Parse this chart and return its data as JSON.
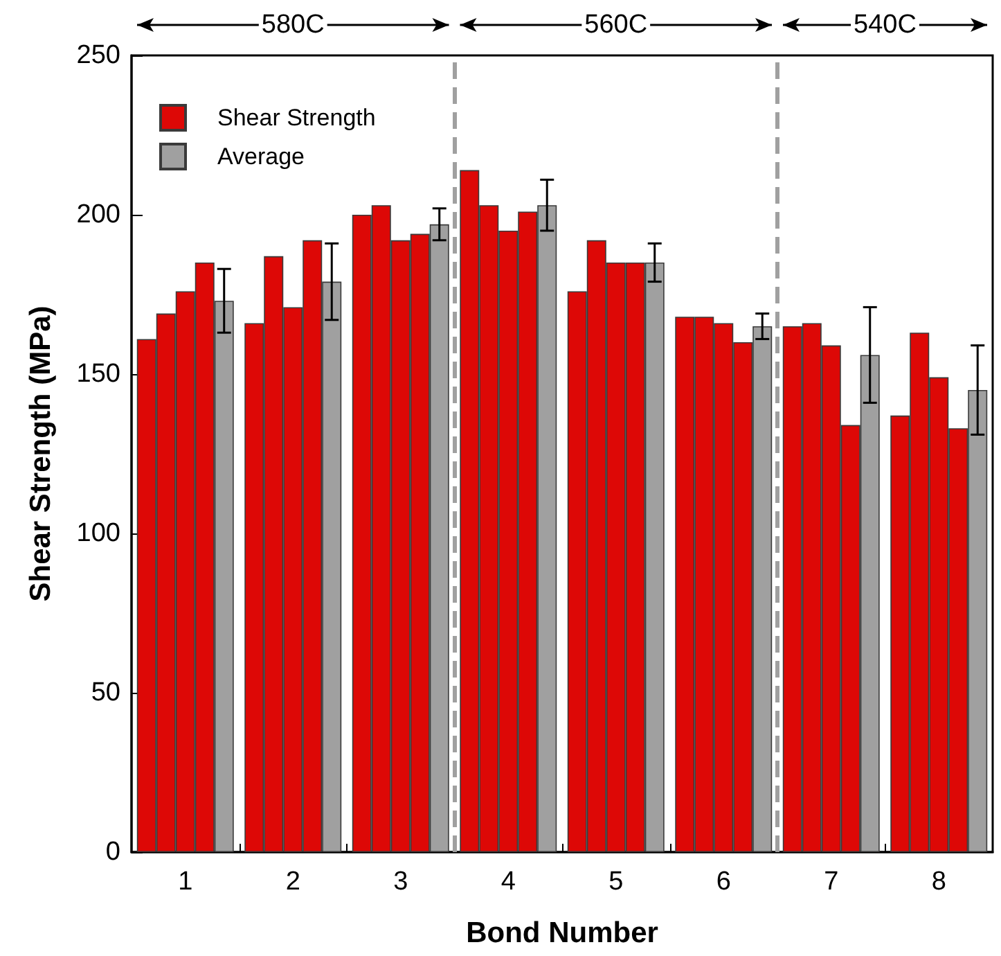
{
  "chart_data": {
    "type": "bar",
    "xlabel": "Bond Number",
    "ylabel": "Shear Strength (MPa)",
    "x": [
      1,
      2,
      3,
      4,
      5,
      6,
      7,
      8
    ],
    "xlim": [
      0.5,
      8.5
    ],
    "xticks": [
      1,
      {
        "value": 1.5,
        "label": null
      },
      2,
      {
        "value": 2.5,
        "label": null
      },
      3,
      {
        "value": 3.5,
        "label": null
      },
      4,
      {
        "value": 4.5,
        "label": null
      },
      5,
      {
        "value": 5.5,
        "label": null
      },
      6,
      {
        "value": 6.5,
        "label": null
      },
      7,
      {
        "value": 7.5,
        "label": null
      },
      8
    ],
    "ylim": [
      0,
      250
    ],
    "yticks": [
      0,
      50,
      100,
      150,
      200,
      250
    ],
    "series": [
      {
        "name": "Shear Strength",
        "color": "#dd0806",
        "values": [
          161,
          166,
          200,
          214,
          176,
          168,
          165,
          137
        ]
      },
      {
        "color": "#dd0806",
        "values": [
          169,
          187,
          203,
          203,
          192,
          168,
          166,
          163
        ]
      },
      {
        "color": "#dd0806",
        "values": [
          176,
          171,
          192,
          195,
          185,
          166,
          159,
          149
        ]
      },
      {
        "color": "#dd0806",
        "values": [
          185,
          192,
          194,
          201,
          185,
          160,
          134,
          133
        ]
      },
      {
        "name": "Average",
        "color": "#a0a0a0",
        "values": [
          173,
          179,
          197,
          203,
          185,
          165,
          156,
          145
        ],
        "errors": [
          10,
          12,
          5,
          8,
          6,
          4,
          15,
          14
        ]
      }
    ],
    "ref_lines": [
      {
        "axis": "x",
        "value": 3.5,
        "color": "#a0a0a0",
        "line_style": "dashed"
      },
      {
        "axis": "x",
        "value": 6.5,
        "color": "#a0a0a0",
        "line_style": "dashed"
      }
    ],
    "annotations": [
      "580C",
      "560C",
      "540C"
    ],
    "legend": "top left",
    "grid": false
  }
}
